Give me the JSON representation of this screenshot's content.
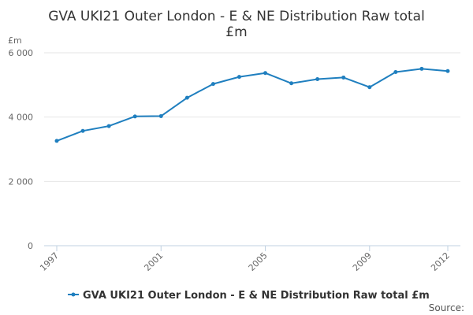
{
  "chart_data": {
    "type": "line",
    "title_lines": [
      "GVA UKI21 Outer London - E & NE Distribution Raw total",
      "£m"
    ],
    "ylabel": "£m",
    "xlabel": "",
    "ylim": [
      0,
      6000
    ],
    "xlim": [
      1997,
      2012
    ],
    "yticks": [
      0,
      2000,
      4000,
      6000
    ],
    "ytick_labels": [
      "0",
      "2 000",
      "4 000",
      "6 000"
    ],
    "xticks": [
      1997,
      2001,
      2005,
      2009,
      2012
    ],
    "xtick_labels": [
      "1997",
      "2001",
      "2005",
      "2009",
      "2012"
    ],
    "grid": true,
    "legend_position": "bottom",
    "series": [
      {
        "name": "GVA UKI21 Outer London - E & NE Distribution Raw total £m",
        "color": "#1f7fbf",
        "x": [
          1997,
          1998,
          1999,
          2000,
          2001,
          2002,
          2003,
          2004,
          2005,
          2006,
          2007,
          2008,
          2009,
          2010,
          2011,
          2012
        ],
        "values": [
          3260,
          3570,
          3720,
          4020,
          4030,
          4600,
          5030,
          5250,
          5370,
          5050,
          5180,
          5230,
          4930,
          5400,
          5500,
          5430
        ]
      }
    ],
    "source_label": "Source:"
  }
}
